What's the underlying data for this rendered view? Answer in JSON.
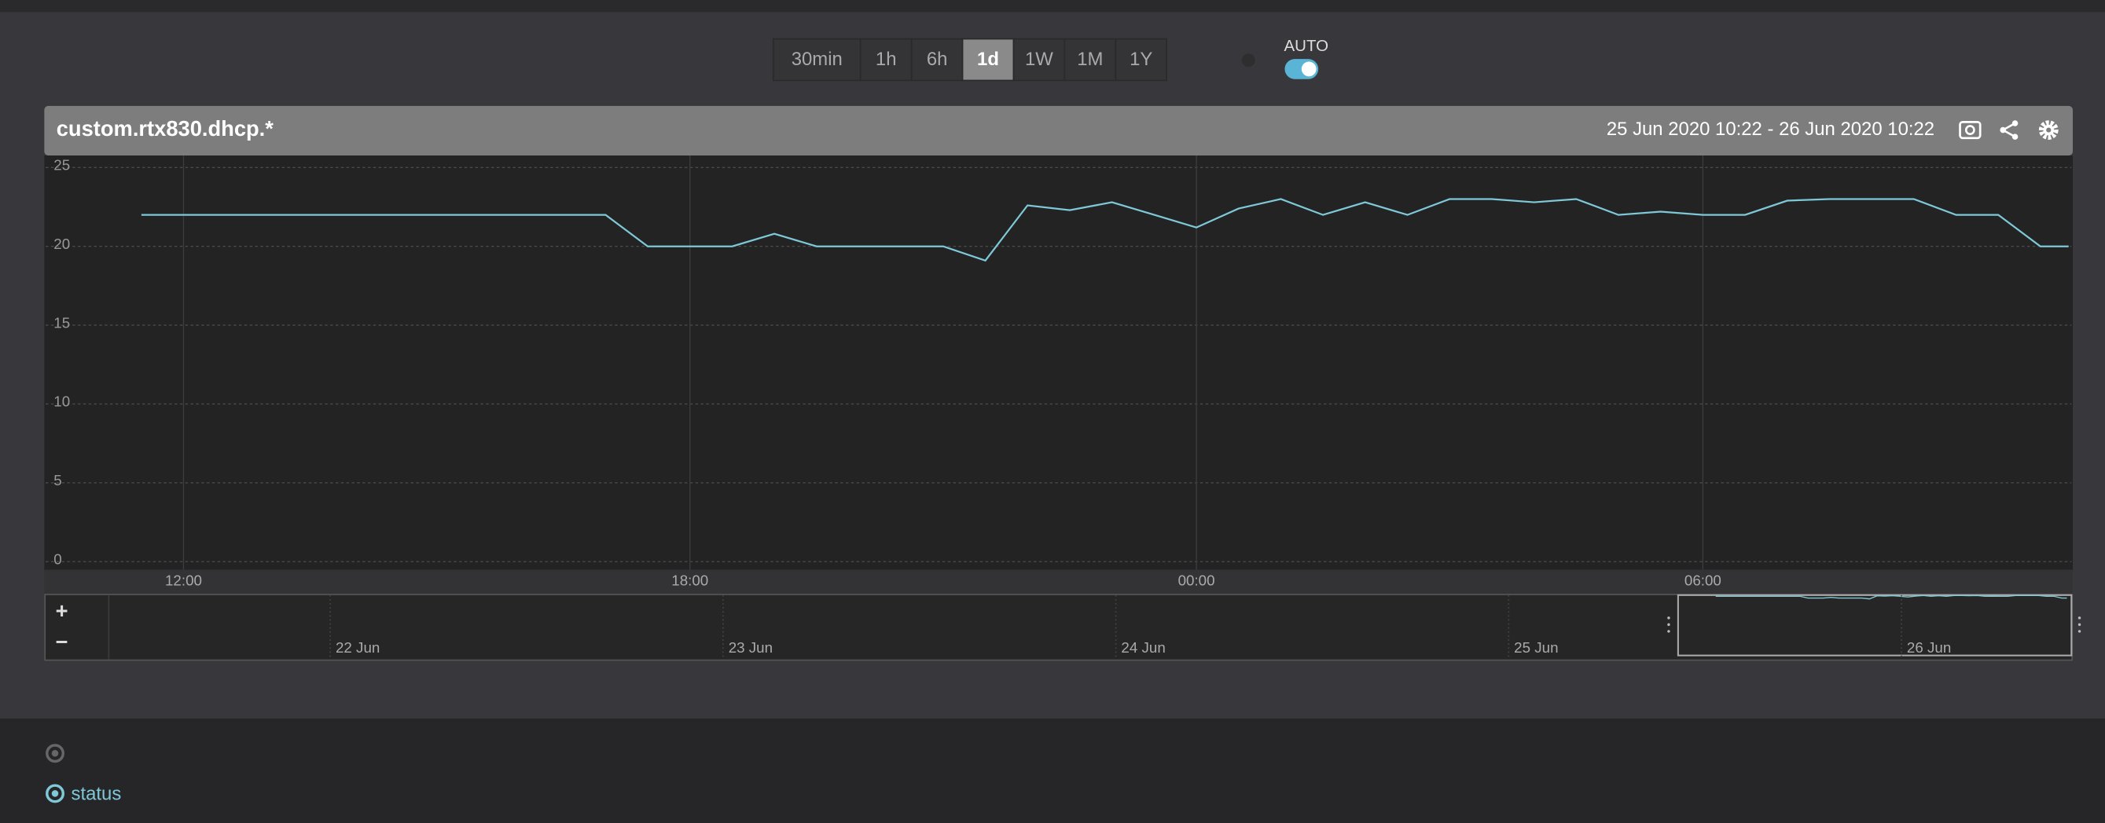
{
  "toolbar": {
    "ranges": [
      "30min",
      "1h",
      "6h",
      "1d",
      "1W",
      "1M",
      "1Y"
    ],
    "selected": "1d",
    "auto_label": "AUTO"
  },
  "panel": {
    "title": "custom.rtx830.dhcp.*",
    "range": "25 Jun 2020 10:22 - 26 Jun 2020 10:22"
  },
  "chart_data": {
    "type": "line",
    "x": [
      "11:30",
      "12:00",
      "12:30",
      "13:00",
      "13:30",
      "14:00",
      "14:30",
      "15:00",
      "15:30",
      "16:00",
      "16:30",
      "17:00",
      "17:30",
      "18:00",
      "18:30",
      "19:00",
      "19:30",
      "20:00",
      "20:30",
      "21:00",
      "21:30",
      "22:00",
      "22:30",
      "23:00",
      "23:30",
      "00:00",
      "00:30",
      "01:00",
      "01:30",
      "02:00",
      "02:30",
      "03:00",
      "03:30",
      "04:00",
      "04:30",
      "05:00",
      "05:30",
      "06:00",
      "06:30",
      "07:00",
      "07:30",
      "08:00",
      "08:30",
      "09:00",
      "09:30",
      "10:00",
      "10:20"
    ],
    "series": [
      {
        "name": "status",
        "color": "#7ec8d8",
        "values": [
          22,
          22,
          22,
          22,
          22,
          22,
          22,
          22,
          22,
          22,
          22,
          22,
          20,
          20,
          20,
          20.8,
          20,
          20,
          20,
          20,
          19.1,
          22.6,
          22.3,
          22.8,
          22,
          21.2,
          22.4,
          23,
          22,
          22.8,
          22,
          23,
          23,
          22.8,
          23,
          22,
          22.2,
          22,
          22,
          22.9,
          23,
          23,
          23,
          22,
          22,
          20,
          20
        ]
      }
    ],
    "xlim": [
      "10:22",
      "10:22"
    ],
    "xticks": [
      "12:00",
      "18:00",
      "00:00",
      "06:00"
    ],
    "ylim": [
      0,
      25
    ],
    "yticks": [
      0,
      5,
      10,
      15,
      20,
      25
    ],
    "grid": true
  },
  "navigator": {
    "labels": [
      "22 Jun",
      "23 Jun",
      "24 Jun",
      "25 Jun",
      "26 Jun"
    ]
  }
}
